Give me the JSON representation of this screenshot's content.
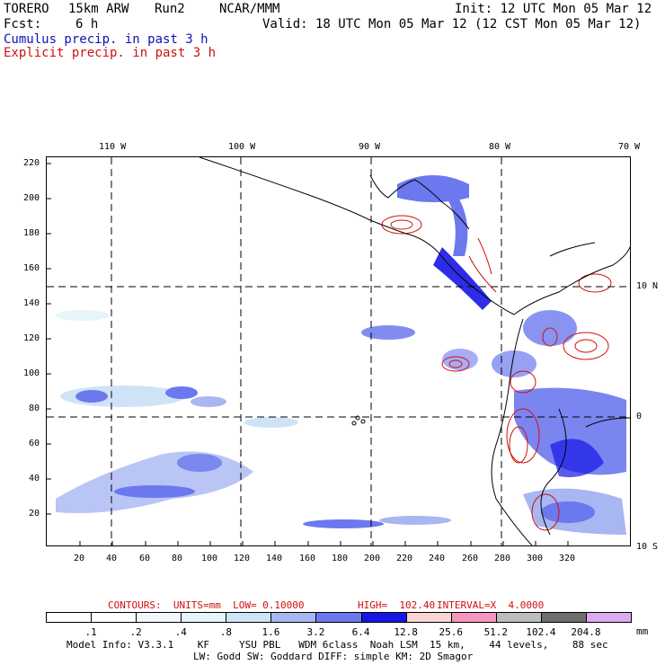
{
  "header": {
    "model": "TORERO",
    "res": "15km ARW",
    "run": "Run2",
    "org": "NCAR/MMM",
    "init": "Init: 12 UTC Mon 05 Mar 12",
    "fcst_label": "Fcst:",
    "fcst_value": "6 h",
    "valid": "Valid: 18 UTC Mon 05 Mar 12 (12 CST Mon 05 Mar 12)",
    "field1": "Cumulus precip. in past 3 h",
    "field2": "Explicit precip. in past 3 h"
  },
  "map": {
    "top_longitudes": [
      "110 W",
      "100 W",
      "90 W",
      "80 W",
      "70 W"
    ],
    "right_latitudes": [
      "10 N",
      "0",
      "10 S"
    ],
    "y_ticks": [
      "220",
      "200",
      "180",
      "160",
      "140",
      "120",
      "100",
      "80",
      "60",
      "40",
      "20"
    ],
    "x_ticks": [
      "20",
      "40",
      "60",
      "80",
      "100",
      "120",
      "140",
      "160",
      "180",
      "200",
      "220",
      "240",
      "260",
      "280",
      "300",
      "320"
    ]
  },
  "contours_note": {
    "units": "CONTOURS:  UNITS=mm  LOW= 0.10000",
    "high": "HIGH=  102.40",
    "interval": "INTERVAL=X  4.0000"
  },
  "colorbar": {
    "colors": [
      "#ffffff",
      "#ffffff",
      "#f3f8fd",
      "#e6f5f9",
      "#cfe3f7",
      "#a8b6f2",
      "#6b78ee",
      "#1616e6",
      "#f9d4d4",
      "#f496bd",
      "#bdbdbd",
      "#6e6e6e",
      "#dcaaf2"
    ],
    "labels": [
      ".1",
      ".2",
      ".4",
      ".8",
      "1.6",
      "3.2",
      "6.4",
      "12.8",
      "25.6",
      "51.2",
      "102.4",
      "204.8"
    ],
    "unit": "mm"
  },
  "footer": {
    "line1": "Model Info: V3.3.1    KF     YSU PBL   WDM 6class  Noah LSM  15 km,    44 levels,    88 sec",
    "line2": "LW: Godd SW: Goddard DIFF: simple KM: 2D Smagor"
  }
}
